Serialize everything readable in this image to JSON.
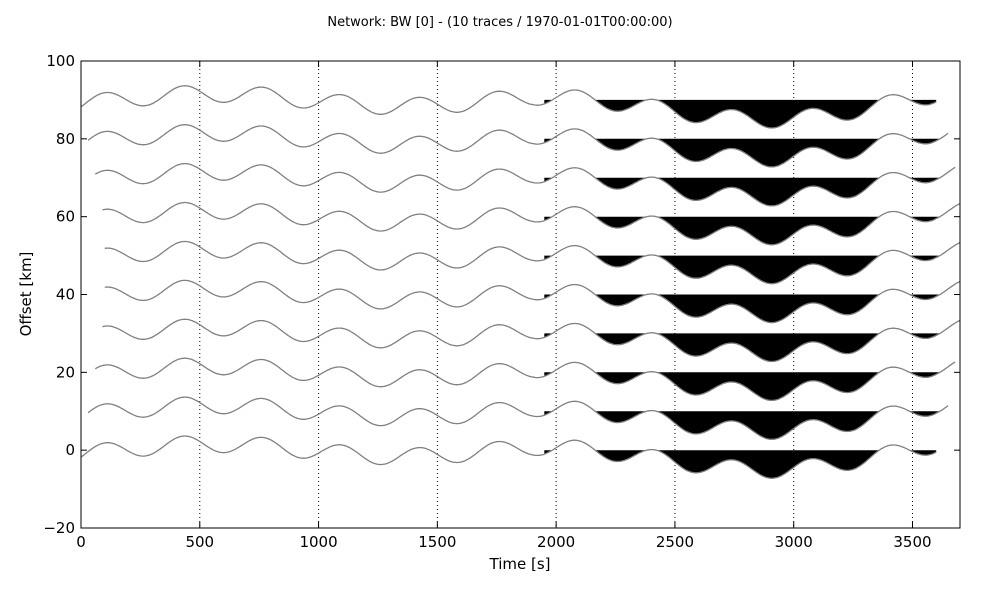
{
  "chart_data": {
    "type": "line",
    "title": "Network: BW [0] - (10 traces / 1970-01-01T00:00:00)",
    "xlabel": "Time [s]",
    "ylabel": "Offset [km]",
    "xlim": [
      0,
      3700
    ],
    "ylim": [
      -20,
      100
    ],
    "xticks": [
      0,
      500,
      1000,
      1500,
      2000,
      2500,
      3000,
      3500
    ],
    "yticks": [
      -20,
      0,
      20,
      40,
      60,
      80,
      100
    ],
    "vertical_gridlines_x": [
      500,
      1000,
      1500,
      2000,
      2500,
      3000,
      3500
    ],
    "fill_below_start_x": 1950,
    "trace_color": "#808080",
    "fill_color": "#000000",
    "series": [
      {
        "offset": 0,
        "x_start": 0,
        "x_end": 3600
      },
      {
        "offset": 10,
        "x_start": 30,
        "x_end": 3650
      },
      {
        "offset": 20,
        "x_start": 60,
        "x_end": 3680
      },
      {
        "offset": 30,
        "x_start": 90,
        "x_end": 3700
      },
      {
        "offset": 40,
        "x_start": 100,
        "x_end": 3700
      },
      {
        "offset": 50,
        "x_start": 100,
        "x_end": 3700
      },
      {
        "offset": 60,
        "x_start": 90,
        "x_end": 3700
      },
      {
        "offset": 70,
        "x_start": 60,
        "x_end": 3680
      },
      {
        "offset": 80,
        "x_start": 30,
        "x_end": 3650
      },
      {
        "offset": 90,
        "x_start": 0,
        "x_end": 3600
      }
    ]
  }
}
